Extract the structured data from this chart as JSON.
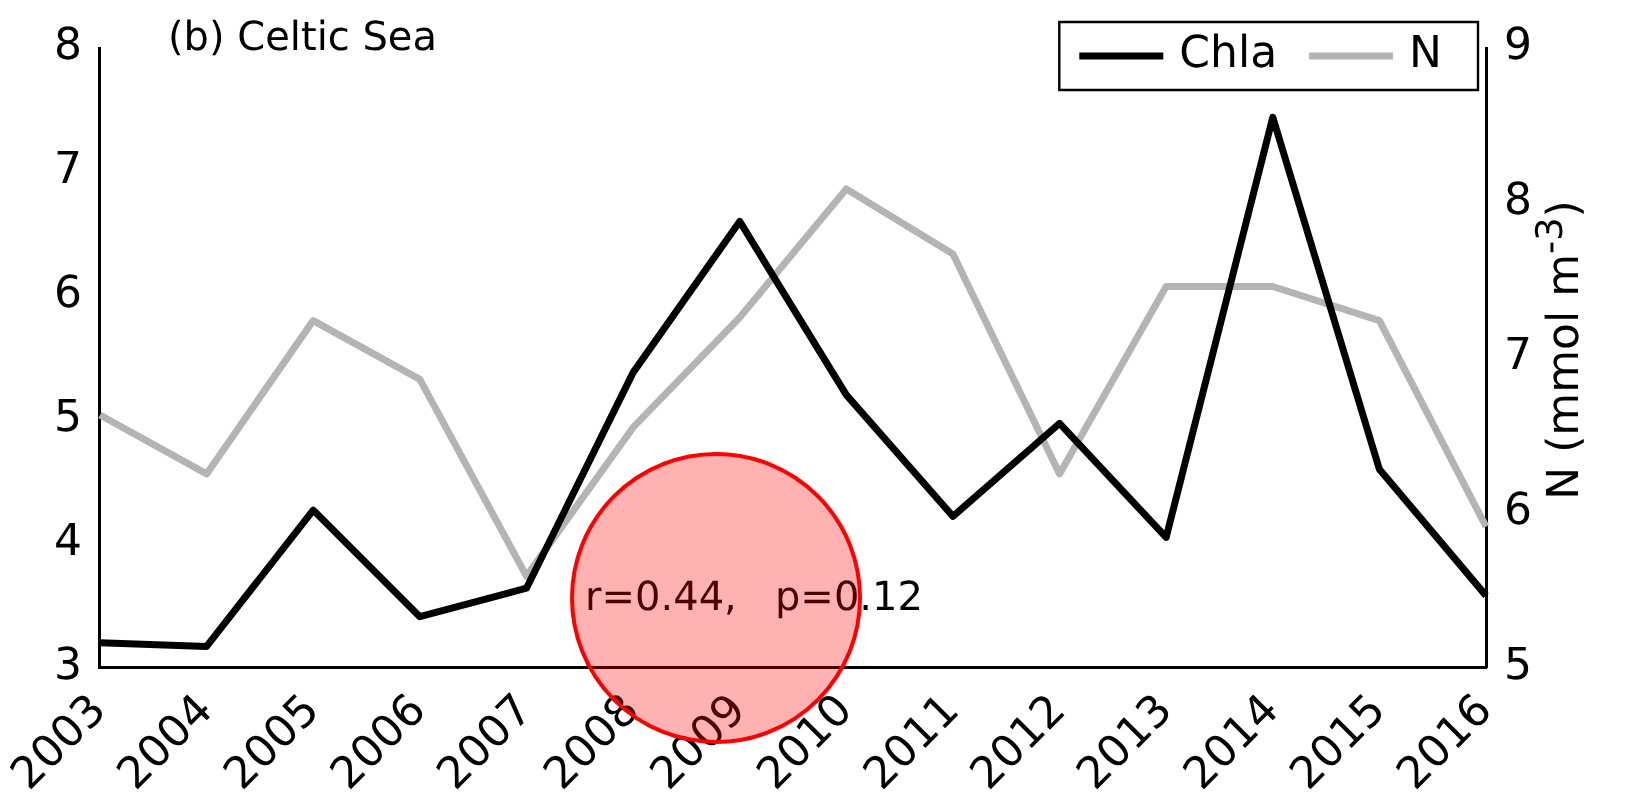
{
  "chart_data": {
    "type": "line",
    "title": "(b) Celtic Sea",
    "y2label": "N (mmol m$^{-3}$)",
    "categories": [
      "2003",
      "2004",
      "2005",
      "2006",
      "2007",
      "2008",
      "2009",
      "2010",
      "2011",
      "2012",
      "2013",
      "2014",
      "2015",
      "2016"
    ],
    "series": [
      {
        "name": "Chla",
        "color": "#000000",
        "values": [
          3.2,
          3.17,
          4.27,
          3.41,
          3.64,
          5.38,
          6.6,
          5.2,
          4.22,
          4.97,
          4.05,
          7.44,
          4.6,
          3.58
        ]
      },
      {
        "name": "N",
        "color": "#b4b4b4",
        "axis": "y2",
        "values": [
          6.63,
          6.25,
          7.24,
          6.86,
          5.59,
          6.55,
          7.26,
          8.09,
          7.67,
          6.25,
          7.46,
          7.46,
          7.24,
          5.91
        ]
      }
    ],
    "ylim": [
      3,
      8
    ],
    "yticks": [
      3,
      4,
      5,
      6,
      7,
      8
    ],
    "y2lim": [
      5,
      9
    ],
    "y2ticks": [
      5,
      6,
      7,
      8,
      9
    ],
    "annotations": [
      "r=0.44,   p=0.12"
    ],
    "legend": "top right",
    "grid": false,
    "marker": "none",
    "line_style": "solid"
  }
}
